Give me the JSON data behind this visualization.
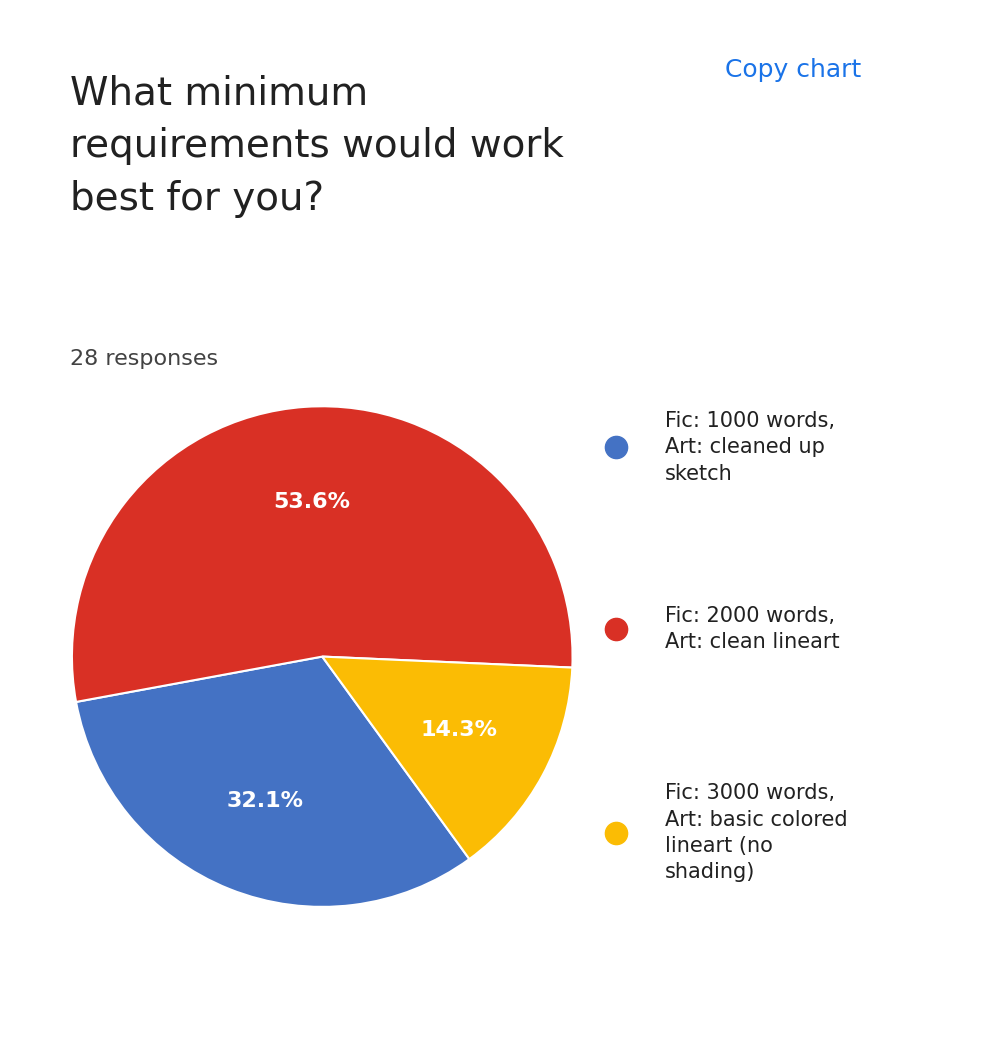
{
  "title": "What minimum\nrequirements would work\nbest for you?",
  "subtitle": "28 responses",
  "slices": [
    32.1,
    53.6,
    14.3
  ],
  "labels": [
    "32.1%",
    "53.6%",
    "14.3%"
  ],
  "colors": [
    "#4472C4",
    "#D93025",
    "#FBBC04"
  ],
  "legend_labels": [
    "Fic: 1000 words,\nArt: cleaned up\nsketch",
    "Fic: 2000 words,\nArt: clean lineart",
    "Fic: 3000 words,\nArt: basic colored\nlineart (no\nshading)"
  ],
  "startangle": 90,
  "background_color": "#ffffff",
  "title_fontsize": 28,
  "subtitle_fontsize": 16,
  "label_fontsize": 16,
  "legend_fontsize": 15
}
